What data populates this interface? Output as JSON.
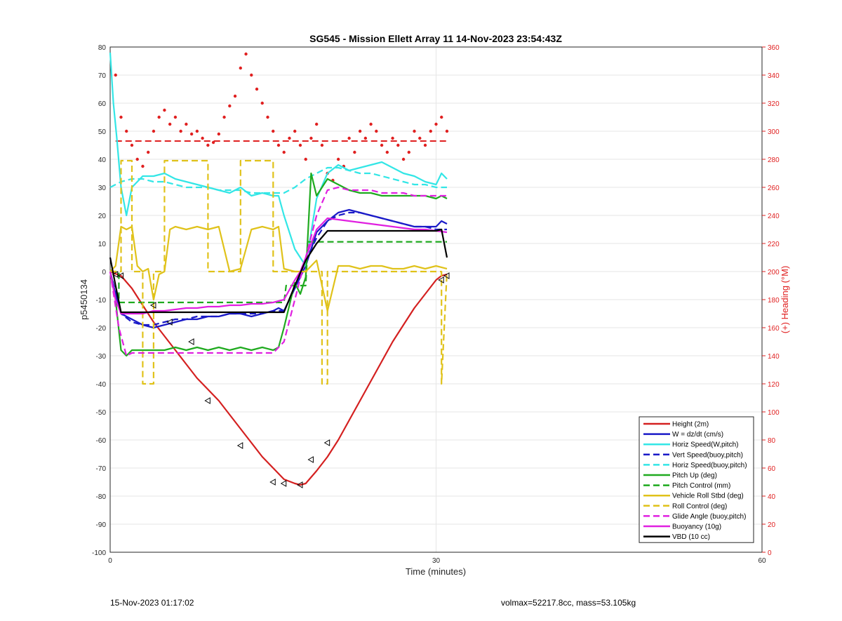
{
  "chart_data": {
    "type": "line",
    "title": "SG545 - Mission Ellett Array 11 14-Nov-2023 23:54:43Z",
    "xlabel": "Time (minutes)",
    "ylabel": "p5450134",
    "y2label": "(+) Heading (°M)",
    "xlim": [
      0,
      60
    ],
    "ylim": [
      -100,
      80
    ],
    "y2lim": [
      0,
      360
    ],
    "xticks": [
      "0",
      "30",
      "60"
    ],
    "yticks": [
      "80",
      "70",
      "60",
      "50",
      "40",
      "30",
      "20",
      "10",
      "0",
      "-10",
      "-20",
      "-30",
      "-40",
      "-50",
      "-60",
      "-70",
      "-80",
      "-90",
      "-100"
    ],
    "y2ticks": [
      "360",
      "340",
      "320",
      "300",
      "280",
      "260",
      "240",
      "220",
      "200",
      "180",
      "160",
      "140",
      "120",
      "100",
      "80",
      "60",
      "40",
      "20",
      "0"
    ],
    "grid": true,
    "legend_position": "bottom-right",
    "colors": {
      "heading": "#e02020",
      "height": "#d42020",
      "w": "#1a1ac8",
      "horiz": "#33e6e6",
      "pitch": "#1faa1f",
      "roll": "#e0c21a",
      "glide": "#e020e0",
      "buoyancy": "#e020e0",
      "vbd": "#000000"
    },
    "series": [
      {
        "name": "Height (2m)",
        "style": "solid",
        "color": "#d42020",
        "x": [
          0,
          0.5,
          1,
          2,
          3,
          4,
          5,
          6,
          7,
          8,
          9,
          10,
          11,
          12,
          13,
          14,
          15,
          16,
          17,
          17.5,
          18,
          19,
          20,
          21,
          22,
          23,
          24,
          25,
          26,
          27,
          28,
          29,
          30,
          30.5,
          31
        ],
        "y": [
          0,
          -0.8,
          -1.5,
          -6,
          -12,
          -18,
          -23,
          -28,
          -33,
          -38,
          -42,
          -46,
          -51,
          -56,
          -61,
          -66,
          -70,
          -74,
          -75.5,
          -76,
          -75.5,
          -71,
          -66,
          -60,
          -53,
          -46,
          -39,
          -32,
          -25,
          -19,
          -13,
          -8,
          -3,
          -1.5,
          -1
        ]
      },
      {
        "name": "W = dz/dt (cm/s)",
        "style": "solid",
        "color": "#1a1ac8",
        "x": [
          0,
          0.5,
          1,
          2,
          3,
          4,
          5,
          6,
          7,
          8,
          9,
          10,
          11,
          12,
          13,
          14,
          15,
          15.5,
          16,
          17,
          18,
          19,
          20,
          21,
          22,
          23,
          24,
          25,
          26,
          27,
          28,
          29,
          30,
          30.5,
          31
        ],
        "y": [
          0,
          -8,
          -15,
          -17,
          -19,
          -20,
          -19,
          -18,
          -17,
          -17,
          -16,
          -16,
          -15,
          -15,
          -16,
          -15,
          -14,
          -13,
          -14,
          -6,
          2,
          14,
          18,
          21,
          22,
          21,
          20,
          19,
          18,
          17,
          16,
          16,
          16,
          18,
          17
        ]
      },
      {
        "name": "Horiz Speed(W,pitch)",
        "style": "solid",
        "color": "#33e6e6",
        "x": [
          0,
          0.3,
          0.6,
          1,
          1.5,
          2,
          3,
          4,
          5,
          6,
          7,
          8,
          9,
          10,
          11,
          12,
          13,
          14,
          15,
          15.5,
          16,
          17,
          18,
          19,
          20,
          21,
          22,
          23,
          24,
          25,
          26,
          27,
          28,
          29,
          30,
          30.5,
          31
        ],
        "y": [
          78,
          60,
          48,
          30,
          20,
          30,
          34,
          34,
          35,
          33,
          32,
          31,
          30,
          29,
          28,
          30,
          27,
          28,
          27,
          27,
          20,
          8,
          2,
          26,
          35,
          38,
          36,
          37,
          38,
          39,
          37,
          35,
          34,
          32,
          31,
          35,
          33
        ]
      },
      {
        "name": "Vert Speed(buoy,pitch)",
        "style": "dashed",
        "color": "#1a1ac8",
        "x": [
          0,
          1,
          2,
          3,
          4,
          5,
          6,
          7,
          8,
          9,
          10,
          11,
          12,
          13,
          14,
          15,
          16,
          17,
          18,
          19,
          20,
          21,
          22,
          23,
          24,
          25,
          26,
          27,
          28,
          29,
          30,
          31
        ],
        "y": [
          0,
          -15,
          -18,
          -19,
          -19,
          -18,
          -17,
          -17,
          -16,
          -16,
          -16,
          -15,
          -15,
          -15,
          -15,
          -14,
          -14,
          -6,
          4,
          12,
          18,
          20,
          21,
          21,
          20,
          19,
          18,
          17,
          16,
          16,
          15,
          15
        ]
      },
      {
        "name": "Horiz Speed(buoy,pitch)",
        "style": "dashed",
        "color": "#33e6e6",
        "x": [
          0,
          1,
          2,
          3,
          4,
          5,
          6,
          7,
          8,
          9,
          10,
          11,
          12,
          13,
          14,
          15,
          16,
          17,
          18,
          19,
          20,
          21,
          22,
          23,
          24,
          25,
          26,
          27,
          28,
          29,
          30,
          31
        ],
        "y": [
          30,
          32,
          33,
          33,
          32,
          32,
          31,
          30,
          30,
          30,
          29,
          29,
          29,
          28,
          28,
          28,
          28,
          30,
          33,
          35,
          37,
          37,
          36,
          35,
          35,
          34,
          33,
          32,
          31,
          31,
          30,
          30
        ]
      },
      {
        "name": "Pitch Up (deg)",
        "style": "solid",
        "color": "#1faa1f",
        "x": [
          0,
          0.5,
          1,
          1.5,
          2,
          3,
          4,
          5,
          6,
          7,
          8,
          9,
          10,
          11,
          12,
          13,
          14,
          15,
          15.5,
          16,
          17,
          17.5,
          18,
          18.5,
          19,
          20,
          21,
          22,
          23,
          24,
          25,
          26,
          27,
          28,
          29,
          30,
          30.5,
          31
        ],
        "y": [
          0,
          -10,
          -28,
          -30,
          -28,
          -28,
          -28,
          -28,
          -27,
          -28,
          -27,
          -28,
          -27,
          -28,
          -27,
          -28,
          -27,
          -28,
          -27,
          -20,
          -4,
          -8,
          -2,
          35,
          27,
          33,
          31,
          29,
          28,
          28,
          27,
          27,
          27,
          27,
          27,
          26,
          27,
          26
        ]
      },
      {
        "name": "Pitch Control (mm)",
        "style": "dashed",
        "color": "#1faa1f",
        "x": [
          0,
          0.8,
          0.8,
          16,
          16.2,
          18,
          18.2,
          31
        ],
        "y": [
          0,
          0,
          -11,
          -11,
          -5,
          -5,
          10.6,
          10.6
        ]
      },
      {
        "name": "Vehicle Roll Stbd (deg)",
        "style": "solid",
        "color": "#e0c21a",
        "x": [
          0,
          0.5,
          1,
          1.5,
          2,
          2.5,
          3,
          3.5,
          4,
          4.5,
          5,
          5.5,
          6,
          7,
          8,
          9,
          10,
          11,
          12,
          13,
          14,
          15,
          15.5,
          16,
          17,
          18,
          19,
          20,
          21,
          22,
          23,
          24,
          25,
          26,
          27,
          28,
          29,
          30,
          31
        ],
        "y": [
          0,
          2,
          16,
          15,
          16,
          2,
          0,
          1,
          -10,
          -1,
          0,
          15,
          16,
          15,
          16,
          15,
          16,
          0,
          1,
          15,
          16,
          15,
          16,
          1,
          0,
          0,
          4,
          -14,
          2,
          2,
          1,
          2,
          2,
          1,
          1,
          2,
          1,
          2,
          1
        ]
      },
      {
        "name": "Roll Control (deg)",
        "style": "dashed",
        "color": "#e0c21a",
        "x": [
          0,
          1,
          1,
          2,
          2,
          3,
          3,
          4,
          4,
          5,
          5,
          9,
          9,
          12,
          12,
          15,
          15,
          16,
          16,
          19.5,
          19.5,
          20,
          20,
          30.5,
          30.5,
          31
        ],
        "y": [
          0,
          0,
          39.5,
          39.5,
          0,
          0,
          -40,
          -40,
          0,
          0,
          39.5,
          39.5,
          0,
          0,
          39.5,
          39.5,
          0,
          0,
          0,
          0,
          -40,
          -40,
          0,
          0,
          -40,
          0
        ]
      },
      {
        "name": "Glide Angle (buoy,pitch)",
        "style": "dashed",
        "color": "#e020e0",
        "x": [
          0,
          0.8,
          1.5,
          2,
          3,
          4,
          5,
          6,
          7,
          8,
          9,
          10,
          11,
          12,
          13,
          14,
          15,
          16,
          17,
          18,
          19,
          20,
          21,
          22,
          23,
          24,
          25,
          26,
          27,
          28,
          29,
          30,
          31
        ],
        "y": [
          0,
          -20,
          -30,
          -29,
          -29,
          -29,
          -29,
          -29,
          -29,
          -29,
          -29,
          -29,
          -29,
          -29,
          -29,
          -29,
          -29,
          -25,
          -10,
          5,
          20,
          29,
          30,
          29,
          29,
          29,
          28,
          28,
          28,
          27,
          27,
          27,
          27
        ]
      },
      {
        "name": "Buoyancy (10g)",
        "style": "solid",
        "color": "#e020e0",
        "x": [
          0,
          0.5,
          1,
          2,
          3,
          4,
          5,
          6,
          7,
          8,
          9,
          10,
          11,
          12,
          13,
          14,
          15,
          16,
          17,
          17.5,
          18,
          19,
          20,
          21,
          22,
          23,
          24,
          25,
          26,
          27,
          28,
          29,
          30,
          31
        ],
        "y": [
          0,
          -10,
          -15,
          -15,
          -15,
          -14,
          -14,
          -13.5,
          -13,
          -13,
          -12.5,
          -12.5,
          -12,
          -12,
          -11.5,
          -11.5,
          -11,
          -10,
          -3,
          0,
          5,
          15,
          19,
          18.5,
          18,
          17.5,
          17,
          16.5,
          16,
          15.5,
          15,
          15,
          14.5,
          14
        ]
      },
      {
        "name": "VBD (10 cc)",
        "style": "solid",
        "color": "#000000",
        "x": [
          0,
          0.5,
          1,
          2,
          4,
          6,
          8,
          10,
          12,
          14,
          16,
          17,
          18,
          19,
          20,
          21,
          22,
          24,
          26,
          28,
          30,
          30.5,
          31
        ],
        "y": [
          5,
          -5,
          -14.5,
          -14.5,
          -14.5,
          -14.5,
          -14.5,
          -14.5,
          -14.5,
          -14.5,
          -14.5,
          -5,
          4,
          10,
          14.5,
          14.5,
          14.5,
          14.5,
          14.5,
          14.5,
          14.5,
          15,
          5
        ]
      }
    ],
    "heading_series": {
      "axis": "right",
      "reference_heading": 293,
      "x": [
        0.5,
        1,
        1.5,
        2,
        2.5,
        3,
        3.5,
        4,
        4.5,
        5,
        5.5,
        6,
        6.5,
        7,
        7.5,
        8,
        8.5,
        9,
        9.5,
        10,
        10.5,
        11,
        11.5,
        12,
        12.5,
        13,
        13.5,
        14,
        14.5,
        15,
        15.5,
        16,
        16.5,
        17,
        17.5,
        18,
        18.5,
        19,
        19.5,
        20,
        20.5,
        21,
        21.5,
        22,
        22.5,
        23,
        23.5,
        24,
        24.5,
        25,
        25.5,
        26,
        26.5,
        27,
        27.5,
        28,
        28.5,
        29,
        29.5,
        30,
        30.5,
        31
      ],
      "y": [
        340,
        310,
        300,
        290,
        280,
        275,
        285,
        300,
        310,
        315,
        305,
        310,
        300,
        305,
        298,
        300,
        295,
        290,
        292,
        298,
        310,
        318,
        325,
        345,
        355,
        340,
        330,
        320,
        310,
        300,
        290,
        285,
        295,
        300,
        290,
        280,
        295,
        305,
        290,
        270,
        265,
        280,
        275,
        295,
        285,
        300,
        295,
        305,
        300,
        290,
        285,
        295,
        290,
        280,
        285,
        300,
        295,
        290,
        300,
        305,
        310,
        300
      ]
    },
    "direction_markers": {
      "x": [
        0.5,
        1,
        4,
        5.5,
        7.5,
        9,
        12,
        15,
        16,
        17.5,
        18.5,
        20,
        30.5,
        31
      ],
      "y": [
        -1,
        -1.5,
        -12,
        -18,
        -25,
        -46,
        -62,
        -75,
        -75.5,
        -76,
        -67,
        -61,
        -3,
        -1.5
      ]
    },
    "legend": [
      "Height (2m)",
      "W = dz/dt (cm/s)",
      "Horiz Speed(W,pitch)",
      "Vert Speed(buoy,pitch)",
      "Horiz Speed(buoy,pitch)",
      "Pitch Up (deg)",
      "Pitch Control (mm)",
      "Vehicle Roll Stbd (deg)",
      "Roll Control (deg)",
      "Glide Angle (buoy,pitch)",
      "Buoyancy (10g)",
      "VBD (10 cc)"
    ]
  },
  "footer": {
    "left": "15-Nov-2023 01:17:02",
    "right": "volmax=52217.8cc, mass=53.105kg"
  }
}
